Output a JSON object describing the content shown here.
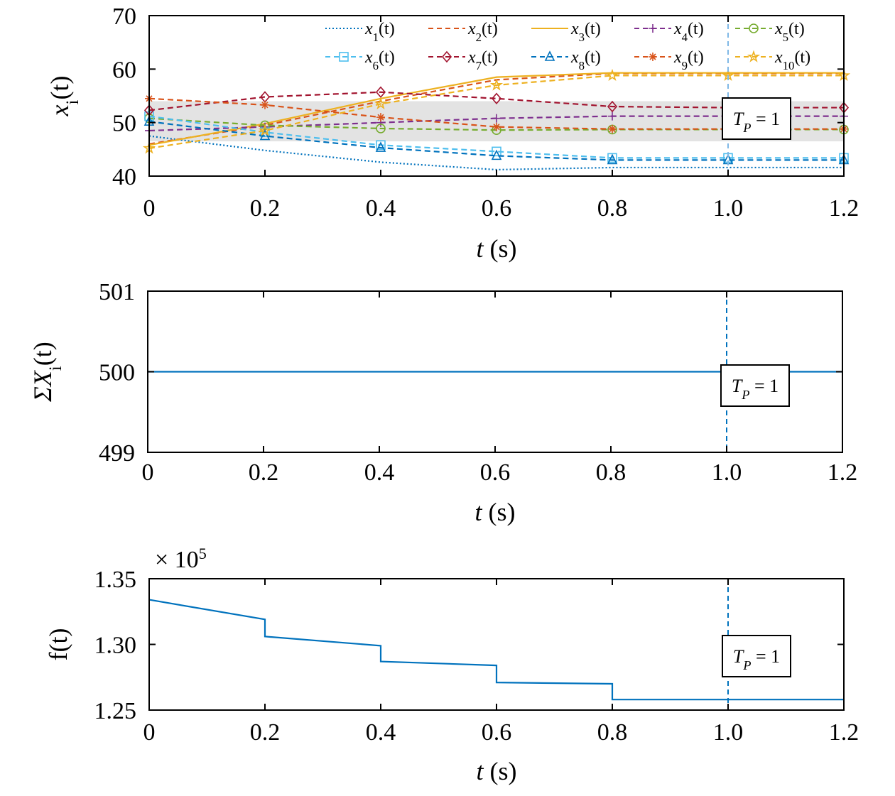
{
  "chart_data": [
    {
      "type": "line",
      "ylabel": "x_i(t)",
      "xlabel": "t (s)",
      "xlim": [
        0,
        1.2
      ],
      "ylim": [
        40,
        70
      ],
      "xticks": [
        "0",
        "0.2",
        "0.4",
        "0.6",
        "0.8",
        "1.0",
        "1.2"
      ],
      "yticks": [
        "40",
        "50",
        "60",
        "70"
      ],
      "legend_position": "top, two rows",
      "shaded_band": [
        46.5,
        54.0
      ],
      "marker_line_x": 1.0,
      "annotation": "T_P = 1",
      "series": [
        {
          "name": "x_1(t)",
          "color": "#0072BD",
          "style": "dotted",
          "marker": "none",
          "x": [
            0,
            0.2,
            0.4,
            0.6,
            0.8,
            1.0,
            1.2
          ],
          "values": [
            47.5,
            44.8,
            42.6,
            41.2,
            41.6,
            41.6,
            41.6
          ]
        },
        {
          "name": "x_2(t)",
          "color": "#D95319",
          "style": "dashed",
          "marker": "none",
          "x": [
            0,
            0.2,
            0.4,
            0.6,
            0.8,
            1.0,
            1.2
          ],
          "values": [
            46.0,
            49.5,
            54.0,
            58.0,
            59.2,
            59.2,
            59.2
          ]
        },
        {
          "name": "x_3(t)",
          "color": "#EDB120",
          "style": "solid",
          "marker": "none",
          "x": [
            0,
            0.2,
            0.4,
            0.6,
            0.8,
            1.0,
            1.2
          ],
          "values": [
            45.8,
            49.8,
            54.5,
            58.5,
            59.3,
            59.3,
            59.3
          ]
        },
        {
          "name": "x_4(t)",
          "color": "#7E2F8E",
          "style": "dashed",
          "marker": "plus",
          "x": [
            0,
            0.2,
            0.4,
            0.6,
            0.8,
            1.0,
            1.2
          ],
          "values": [
            48.5,
            49.2,
            50.0,
            50.8,
            51.2,
            51.2,
            51.2
          ]
        },
        {
          "name": "x_5(t)",
          "color": "#77AC30",
          "style": "dashed",
          "marker": "circle",
          "x": [
            0,
            0.2,
            0.4,
            0.6,
            0.8,
            1.0,
            1.2
          ],
          "values": [
            50.8,
            49.5,
            48.9,
            48.6,
            48.7,
            48.7,
            48.7
          ]
        },
        {
          "name": "x_6(t)",
          "color": "#4DBEEE",
          "style": "dashed",
          "marker": "square",
          "x": [
            0,
            0.2,
            0.4,
            0.6,
            0.8,
            1.0,
            1.2
          ],
          "values": [
            51.2,
            48.2,
            45.8,
            44.6,
            43.4,
            43.4,
            43.4
          ]
        },
        {
          "name": "x_7(t)",
          "color": "#A2142F",
          "style": "dashed",
          "marker": "diamond",
          "x": [
            0,
            0.2,
            0.4,
            0.6,
            0.8,
            1.0,
            1.2
          ],
          "values": [
            52.3,
            54.8,
            55.7,
            54.5,
            53.0,
            52.8,
            52.8
          ]
        },
        {
          "name": "x_8(t)",
          "color": "#0072BD",
          "style": "dashed",
          "marker": "triangle",
          "x": [
            0,
            0.2,
            0.4,
            0.6,
            0.8,
            1.0,
            1.2
          ],
          "values": [
            50.2,
            47.5,
            45.3,
            43.8,
            43.0,
            43.0,
            43.0
          ]
        },
        {
          "name": "x_9(t)",
          "color": "#D95319",
          "style": "dashed",
          "marker": "star",
          "x": [
            0,
            0.2,
            0.4,
            0.6,
            0.8,
            1.0,
            1.2
          ],
          "values": [
            54.5,
            53.3,
            51.0,
            49.2,
            48.8,
            48.8,
            48.8
          ]
        },
        {
          "name": "x_10(t)",
          "color": "#EDB120",
          "style": "dashed",
          "marker": "pentagram",
          "x": [
            0,
            0.2,
            0.4,
            0.6,
            0.8,
            1.0,
            1.2
          ],
          "values": [
            45.2,
            48.5,
            53.5,
            57.0,
            58.8,
            58.8,
            58.8
          ]
        }
      ]
    },
    {
      "type": "line",
      "ylabel": "ΣX_i(t)",
      "xlabel": "t (s)",
      "xlim": [
        0,
        1.2
      ],
      "ylim": [
        499,
        501
      ],
      "xticks": [
        "0",
        "0.2",
        "0.4",
        "0.6",
        "0.8",
        "1.0",
        "1.2"
      ],
      "yticks": [
        "499",
        "500",
        "501"
      ],
      "marker_line_x": 1.0,
      "annotation": "T_P = 1",
      "series": [
        {
          "color": "#0072BD",
          "x": [
            0,
            1.2
          ],
          "values": [
            500,
            500
          ]
        }
      ]
    },
    {
      "type": "line",
      "ylabel": "f(t)",
      "xlabel": "t (s)",
      "xlim": [
        0,
        1.2
      ],
      "ylim": [
        1.25,
        1.35
      ],
      "xticks": [
        "0",
        "0.2",
        "0.4",
        "0.6",
        "0.8",
        "1.0",
        "1.2"
      ],
      "yticks": [
        "1.25",
        "1.30",
        "1.35"
      ],
      "exponent_label": "× 10",
      "exponent_power": "5",
      "marker_line_x": 1.0,
      "annotation": "T_P = 1",
      "series": [
        {
          "color": "#0072BD",
          "x": [
            0,
            0.2,
            0.2,
            0.4,
            0.4,
            0.6,
            0.6,
            0.8,
            0.8,
            1.2
          ],
          "values": [
            1.334,
            1.319,
            1.306,
            1.299,
            1.287,
            1.284,
            1.271,
            1.27,
            1.258,
            1.258
          ]
        }
      ]
    }
  ]
}
